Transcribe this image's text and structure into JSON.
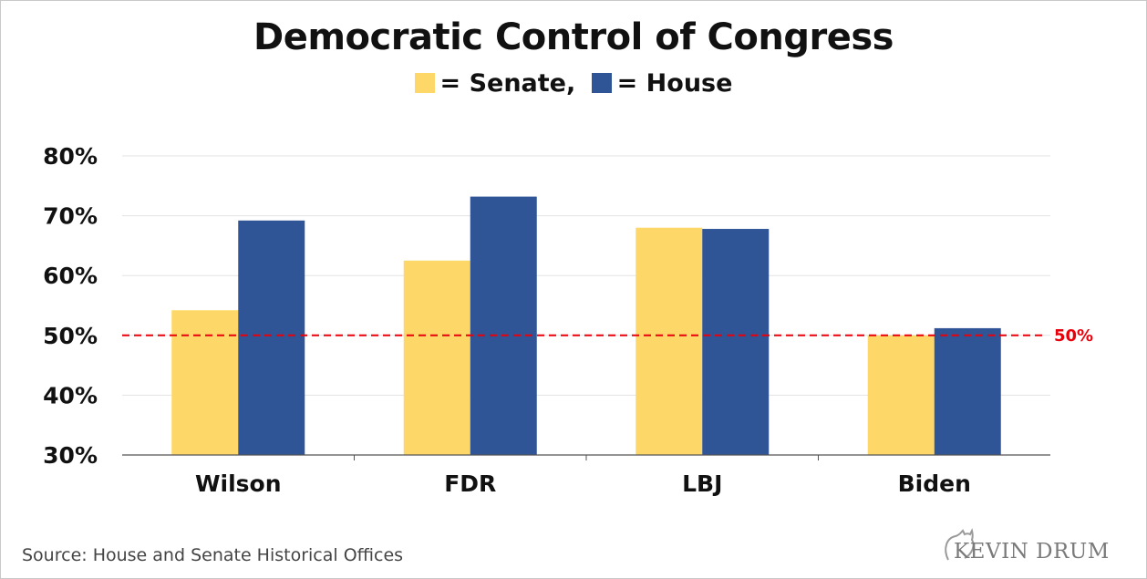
{
  "title": "Democratic Control of Congress",
  "source": "Source: House and Senate Historical Offices",
  "brand": "KEVIN DRUM",
  "chart_data": {
    "type": "bar",
    "title": "Democratic Control of Congress",
    "categories": [
      "Wilson",
      "FDR",
      "LBJ",
      "Biden"
    ],
    "series": [
      {
        "name": "Senate",
        "legend_label": "= Senate,",
        "color": "#fdd868",
        "values": [
          54.2,
          62.5,
          68.0,
          50.0
        ]
      },
      {
        "name": "House",
        "legend_label": "= House",
        "color": "#2f5597",
        "values": [
          69.2,
          73.2,
          67.8,
          51.2
        ]
      }
    ],
    "ylim": [
      30,
      80
    ],
    "yticks": [
      30,
      40,
      50,
      60,
      70,
      80
    ],
    "ytick_labels": [
      "30%",
      "40%",
      "50%",
      "60%",
      "70%",
      "80%"
    ],
    "reference_line": {
      "value": 50,
      "label": "50%",
      "color": "#e8000b",
      "style": "dashed"
    },
    "grid": true
  }
}
